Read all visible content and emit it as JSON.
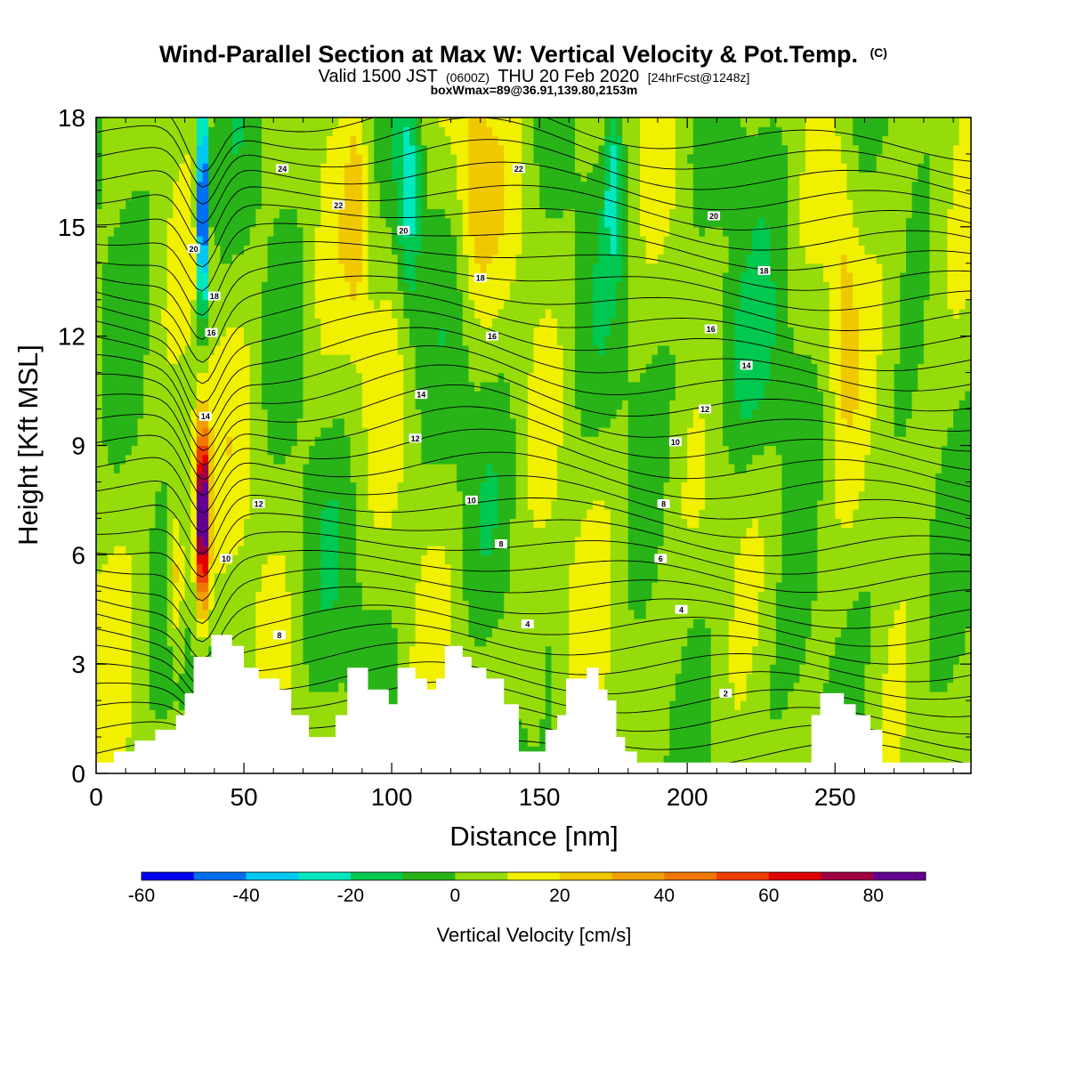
{
  "chart_data": {
    "type": "heatmap",
    "title": "Wind-Parallel Section at Max W: Vertical Velocity & Pot.Temp.",
    "title_mark": "(C)",
    "subtitle": {
      "valid": "Valid 1500 JST",
      "utc": "(0600Z)",
      "date": "THU 20 Feb 2020",
      "forecast": "[24hrFcst@1248z]"
    },
    "annotation": "boxWmax=89@36.91,139.80,2153m",
    "xlabel": "Distance [nm]",
    "ylabel": "Height [Kft MSL]",
    "xlim": [
      0,
      296
    ],
    "ylim": [
      0,
      18
    ],
    "xticks": [
      "0",
      "50",
      "100",
      "150",
      "200",
      "250"
    ],
    "yticks": [
      "0",
      "3",
      "6",
      "9",
      "12",
      "15",
      "18"
    ],
    "colorbar": {
      "label": "Vertical Velocity [cm/s]",
      "ticks": [
        "-60",
        "-40",
        "-20",
        "0",
        "20",
        "40",
        "60",
        "80"
      ],
      "bounds": [
        -60,
        90
      ],
      "step": 10,
      "colors": [
        "#0000f0",
        "#0070f0",
        "#00c8f0",
        "#00e8c0",
        "#00c850",
        "#28b418",
        "#96dc0a",
        "#f0f000",
        "#f0c800",
        "#f0a000",
        "#f07800",
        "#f03c00",
        "#e00000",
        "#a00040",
        "#640090"
      ]
    },
    "wmax": {
      "x_nm": 36,
      "z_kft": 7.1,
      "value_cms": 89
    },
    "terrain": [
      [
        0,
        0.3
      ],
      [
        6,
        0.3
      ],
      [
        6,
        0.6
      ],
      [
        13,
        0.6
      ],
      [
        13,
        0.9
      ],
      [
        20,
        0.9
      ],
      [
        20,
        1.2
      ],
      [
        27,
        1.2
      ],
      [
        27,
        1.6
      ],
      [
        30,
        1.6
      ],
      [
        30,
        2.2
      ],
      [
        33,
        2.2
      ],
      [
        33,
        3.2
      ],
      [
        39,
        3.2
      ],
      [
        39,
        3.8
      ],
      [
        46,
        3.8
      ],
      [
        46,
        3.5
      ],
      [
        50,
        3.5
      ],
      [
        50,
        2.9
      ],
      [
        55,
        2.9
      ],
      [
        55,
        2.6
      ],
      [
        62,
        2.6
      ],
      [
        62,
        2.3
      ],
      [
        66,
        2.3
      ],
      [
        66,
        1.6
      ],
      [
        72,
        1.6
      ],
      [
        72,
        1.0
      ],
      [
        81,
        1.0
      ],
      [
        81,
        1.6
      ],
      [
        85,
        1.6
      ],
      [
        85,
        2.9
      ],
      [
        92,
        2.9
      ],
      [
        92,
        2.3
      ],
      [
        99,
        2.3
      ],
      [
        99,
        1.9
      ],
      [
        102,
        1.9
      ],
      [
        102,
        2.9
      ],
      [
        108,
        2.9
      ],
      [
        108,
        2.6
      ],
      [
        112,
        2.6
      ],
      [
        112,
        2.3
      ],
      [
        115,
        2.3
      ],
      [
        115,
        2.6
      ],
      [
        118,
        2.6
      ],
      [
        118,
        3.5
      ],
      [
        124,
        3.5
      ],
      [
        124,
        3.2
      ],
      [
        127,
        3.2
      ],
      [
        127,
        2.9
      ],
      [
        132,
        2.9
      ],
      [
        132,
        2.6
      ],
      [
        138,
        2.6
      ],
      [
        138,
        1.9
      ],
      [
        143,
        1.9
      ],
      [
        143,
        0.6
      ],
      [
        152,
        0.6
      ],
      [
        152,
        1.2
      ],
      [
        156,
        1.2
      ],
      [
        156,
        1.6
      ],
      [
        159,
        1.6
      ],
      [
        159,
        2.6
      ],
      [
        166,
        2.6
      ],
      [
        166,
        2.9
      ],
      [
        170,
        2.9
      ],
      [
        170,
        2.3
      ],
      [
        173,
        2.3
      ],
      [
        173,
        2.0
      ],
      [
        176,
        2.0
      ],
      [
        176,
        1.0
      ],
      [
        179,
        1.0
      ],
      [
        179,
        0.6
      ],
      [
        183,
        0.6
      ],
      [
        183,
        0.3
      ],
      [
        242,
        0.3
      ],
      [
        242,
        1.6
      ],
      [
        245,
        1.6
      ],
      [
        245,
        2.2
      ],
      [
        253,
        2.2
      ],
      [
        253,
        1.9
      ],
      [
        257,
        1.9
      ],
      [
        257,
        1.6
      ],
      [
        262,
        1.6
      ],
      [
        262,
        1.2
      ],
      [
        266,
        1.2
      ],
      [
        266,
        0.3
      ],
      [
        296,
        0.3
      ]
    ],
    "theta_contour_labels": [
      {
        "text": "24",
        "x": 63,
        "z": 16.6
      },
      {
        "text": "22",
        "x": 82,
        "z": 15.6
      },
      {
        "text": "20",
        "x": 104,
        "z": 14.9
      },
      {
        "text": "22",
        "x": 143,
        "z": 16.6
      },
      {
        "text": "20",
        "x": 209,
        "z": 15.3
      },
      {
        "text": "18",
        "x": 130,
        "z": 13.6
      },
      {
        "text": "18",
        "x": 226,
        "z": 13.8
      },
      {
        "text": "16",
        "x": 134,
        "z": 12.0
      },
      {
        "text": "16",
        "x": 208,
        "z": 12.2
      },
      {
        "text": "14",
        "x": 220,
        "z": 11.2
      },
      {
        "text": "14",
        "x": 110,
        "z": 10.4
      },
      {
        "text": "12",
        "x": 206,
        "z": 10.0
      },
      {
        "text": "12",
        "x": 108,
        "z": 9.2
      },
      {
        "text": "10",
        "x": 196,
        "z": 9.1
      },
      {
        "text": "10",
        "x": 127,
        "z": 7.5
      },
      {
        "text": "8",
        "x": 192,
        "z": 7.4
      },
      {
        "text": "8",
        "x": 137,
        "z": 6.3
      },
      {
        "text": "6",
        "x": 191,
        "z": 5.9
      },
      {
        "text": "4",
        "x": 198,
        "z": 4.5
      },
      {
        "text": "4",
        "x": 146,
        "z": 4.1
      },
      {
        "text": "2",
        "x": 213,
        "z": 2.2
      },
      {
        "text": "8",
        "x": 62,
        "z": 3.8
      },
      {
        "text": "10",
        "x": 44,
        "z": 5.9
      },
      {
        "text": "12",
        "x": 55,
        "z": 7.4
      },
      {
        "text": "14",
        "x": 37,
        "z": 9.8
      },
      {
        "text": "16",
        "x": 39,
        "z": 12.1
      },
      {
        "text": "18",
        "x": 40,
        "z": 13.1
      },
      {
        "text": "20",
        "x": 33,
        "z": 14.4
      }
    ]
  }
}
